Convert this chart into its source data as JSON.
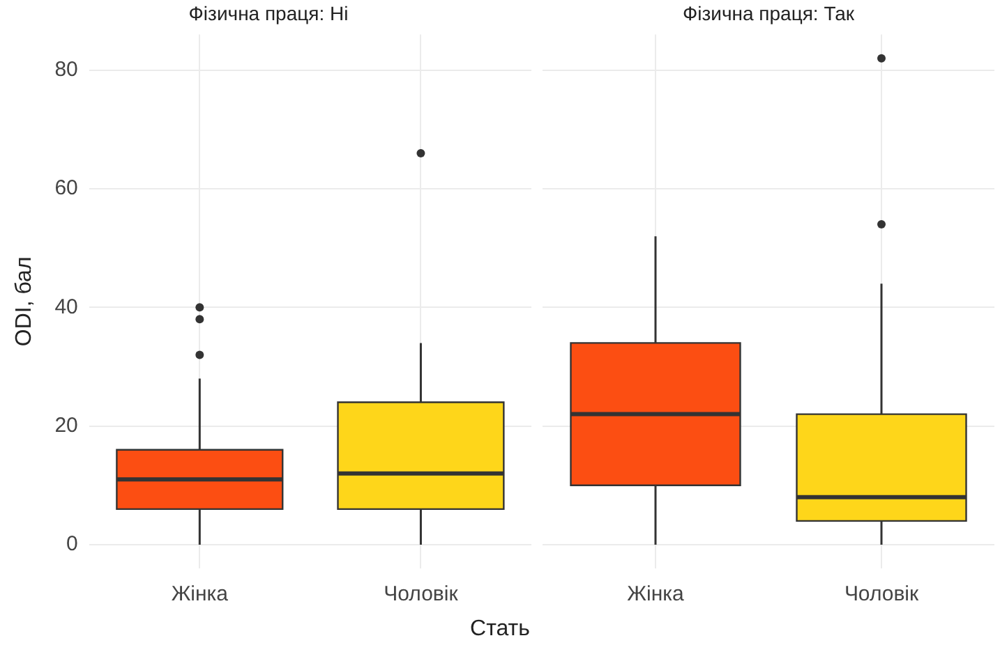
{
  "chart_data": [
    {
      "type": "box",
      "title": "Фізична праця: Ні",
      "ylabel": "ODI, бал",
      "xlabel": "Стать",
      "categories": [
        "Жінка",
        "Чоловік"
      ],
      "colors": [
        "#fc4e12",
        "#fed61a"
      ],
      "boxes": [
        {
          "low": 0,
          "q1": 6,
          "median": 11,
          "q3": 16,
          "high": 28,
          "outliers": [
            32,
            38,
            40
          ]
        },
        {
          "low": 0,
          "q1": 6,
          "median": 12,
          "q3": 24,
          "high": 34,
          "outliers": [
            66
          ]
        }
      ],
      "ylim": [
        -4,
        86
      ],
      "yticks": [
        0,
        20,
        40,
        60,
        80
      ],
      "grid": true,
      "legend": false
    },
    {
      "type": "box",
      "title": "Фізична праця: Так",
      "categories": [
        "Жінка",
        "Чоловік"
      ],
      "colors": [
        "#fc4e12",
        "#fed61a"
      ],
      "boxes": [
        {
          "low": 0,
          "q1": 10,
          "median": 22,
          "q3": 34,
          "high": 52
        },
        {
          "low": 0,
          "q1": 4,
          "median": 8,
          "q3": 22,
          "high": 44,
          "outliers": [
            54,
            82
          ]
        }
      ],
      "ylim": [
        -4,
        86
      ],
      "yticks": [
        0,
        20,
        40,
        60,
        80
      ],
      "grid": true,
      "legend": false,
      "tick_labels": "x"
    }
  ]
}
